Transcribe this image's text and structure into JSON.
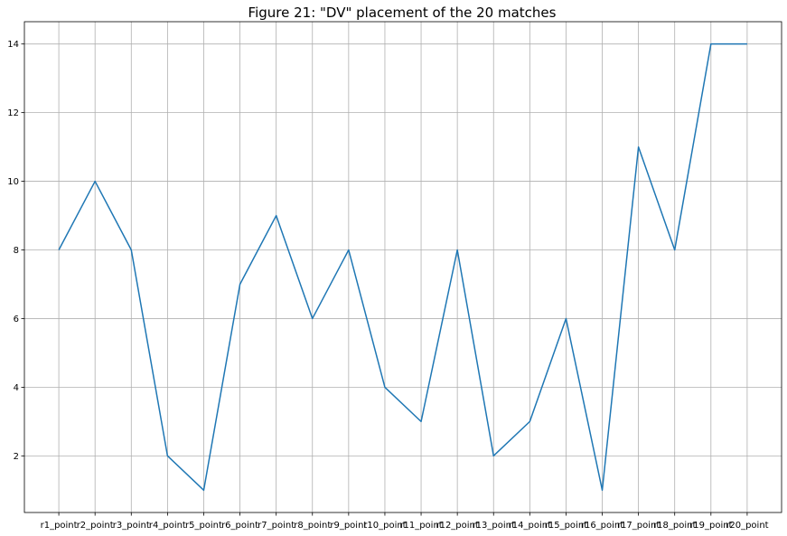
{
  "chart_data": {
    "type": "line",
    "title": "Figure 21: \"DV\" placement of the 20 matches",
    "xlabel": "",
    "ylabel": "",
    "categories": [
      "r1_point",
      "r2_point",
      "r3_point",
      "r4_point",
      "r5_point",
      "r6_point",
      "r7_point",
      "r8_point",
      "r9_point",
      "r10_point",
      "r11_point",
      "r12_point",
      "r13_point",
      "r14_point",
      "r15_point",
      "r16_point",
      "r17_point",
      "r18_point",
      "r19_point",
      "r20_point"
    ],
    "series": [
      {
        "values": [
          8,
          10,
          8,
          2,
          1,
          7,
          9,
          6,
          8,
          4,
          3,
          8,
          2,
          3,
          6,
          1,
          11,
          8,
          14,
          14
        ],
        "color": "#1f77b4"
      }
    ],
    "ylim": [
      0.35,
      14.65
    ],
    "yticks": [
      2,
      4,
      6,
      8,
      10,
      12,
      14
    ],
    "grid": true,
    "legend": "none"
  }
}
